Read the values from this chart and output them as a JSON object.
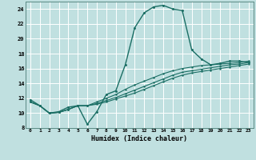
{
  "title": "",
  "xlabel": "Humidex (Indice chaleur)",
  "bg_color": "#c0e0e0",
  "grid_color": "#ffffff",
  "line_color": "#1a6e64",
  "xlim": [
    -0.5,
    23.5
  ],
  "ylim": [
    8,
    25
  ],
  "xticks": [
    0,
    1,
    2,
    3,
    4,
    5,
    6,
    7,
    8,
    9,
    10,
    11,
    12,
    13,
    14,
    15,
    16,
    17,
    18,
    19,
    20,
    21,
    22,
    23
  ],
  "yticks": [
    8,
    10,
    12,
    14,
    16,
    18,
    20,
    22,
    24
  ],
  "curve1_x": [
    0,
    1,
    2,
    3,
    4,
    5,
    6,
    7,
    8,
    9,
    10,
    11,
    12,
    13,
    14,
    15,
    16,
    17,
    18,
    19,
    20,
    21,
    22,
    23
  ],
  "curve1_y": [
    11.8,
    11.0,
    10.0,
    10.2,
    10.8,
    11.0,
    8.5,
    10.2,
    12.5,
    13.0,
    16.5,
    21.5,
    23.5,
    24.3,
    24.5,
    24.0,
    23.8,
    18.5,
    17.3,
    16.5,
    16.7,
    17.0,
    17.0,
    16.8
  ],
  "curve2_x": [
    0,
    1,
    2,
    3,
    4,
    5,
    6,
    7,
    8,
    9,
    10,
    11,
    12,
    13,
    14,
    15,
    16,
    17,
    18,
    19,
    20,
    21,
    22,
    23
  ],
  "curve2_y": [
    11.5,
    11.0,
    10.0,
    10.1,
    10.5,
    11.0,
    11.0,
    11.5,
    12.0,
    12.5,
    13.2,
    13.8,
    14.3,
    14.8,
    15.3,
    15.7,
    16.0,
    16.2,
    16.4,
    16.5,
    16.6,
    16.7,
    16.8,
    17.0
  ],
  "curve3_x": [
    0,
    1,
    2,
    3,
    4,
    5,
    6,
    7,
    8,
    9,
    10,
    11,
    12,
    13,
    14,
    15,
    16,
    17,
    18,
    19,
    20,
    21,
    22,
    23
  ],
  "curve3_y": [
    11.5,
    11.0,
    10.0,
    10.1,
    10.5,
    11.0,
    11.0,
    11.3,
    11.7,
    12.1,
    12.6,
    13.1,
    13.6,
    14.1,
    14.6,
    15.1,
    15.5,
    15.7,
    15.9,
    16.1,
    16.3,
    16.5,
    16.6,
    16.8
  ],
  "curve4_x": [
    0,
    1,
    2,
    3,
    4,
    5,
    6,
    7,
    8,
    9,
    10,
    11,
    12,
    13,
    14,
    15,
    16,
    17,
    18,
    19,
    20,
    21,
    22,
    23
  ],
  "curve4_y": [
    11.5,
    11.0,
    10.0,
    10.1,
    10.5,
    11.0,
    11.0,
    11.2,
    11.5,
    11.9,
    12.3,
    12.7,
    13.2,
    13.7,
    14.2,
    14.7,
    15.1,
    15.4,
    15.6,
    15.8,
    16.0,
    16.2,
    16.4,
    16.6
  ]
}
